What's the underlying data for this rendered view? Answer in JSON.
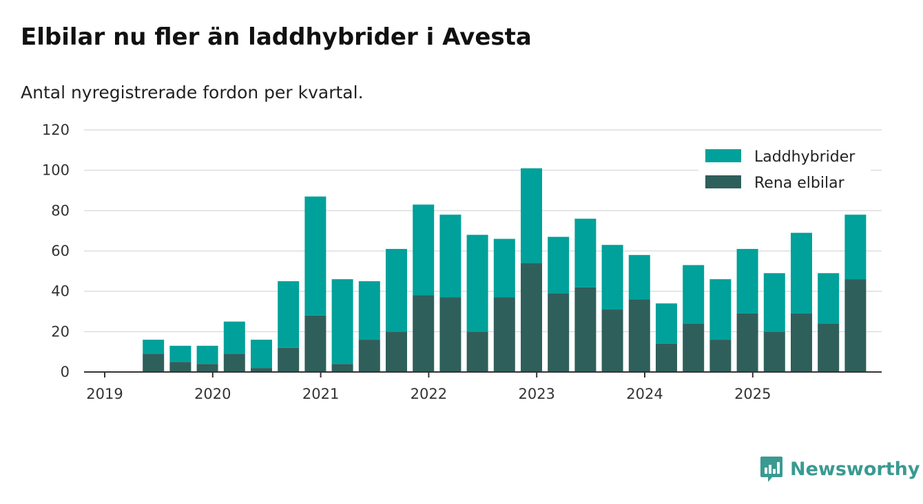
{
  "title": "Elbilar nu fler än laddhybrider i Avesta",
  "subtitle": "Antal nyregistrerade fordon per kvartal.",
  "brand": {
    "name": "Newsworthy",
    "icon": "newsworthy-logo-icon",
    "color": "#3a9a92"
  },
  "chart_data": {
    "type": "bar",
    "stacked": true,
    "categories": [
      "2019 Q1",
      "2019 Q2",
      "2019 Q3",
      "2019 Q4",
      "2020 Q1",
      "2020 Q2",
      "2020 Q3",
      "2020 Q4",
      "2021 Q1",
      "2021 Q2",
      "2021 Q3",
      "2021 Q4",
      "2022 Q1",
      "2022 Q2",
      "2022 Q3",
      "2022 Q4",
      "2023 Q1",
      "2023 Q2",
      "2023 Q3",
      "2023 Q4",
      "2024 Q1",
      "2024 Q2",
      "2024 Q3",
      "2024 Q4",
      "2025 Q1",
      "2025 Q2",
      "2025 Q3",
      "2025 Q4"
    ],
    "series": [
      {
        "name": "Rena elbilar",
        "color": "#2f5f5b",
        "values": [
          0,
          9,
          5,
          4,
          9,
          2,
          12,
          28,
          4,
          16,
          20,
          38,
          37,
          20,
          37,
          54,
          39,
          42,
          31,
          36,
          14,
          24,
          16,
          29,
          20,
          29,
          24,
          46
        ]
      },
      {
        "name": "Laddhybrider",
        "color": "#00a19a",
        "values": [
          0,
          7,
          8,
          9,
          16,
          14,
          33,
          59,
          42,
          29,
          41,
          45,
          41,
          48,
          29,
          47,
          28,
          34,
          32,
          22,
          20,
          29,
          30,
          32,
          29,
          40,
          25,
          32
        ]
      }
    ],
    "legend": [
      "Laddhybrider",
      "Rena elbilar"
    ],
    "legend_position": "top-right",
    "x_tick_labels": [
      "2019",
      "2020",
      "2021",
      "2022",
      "2023",
      "2024",
      "2025"
    ],
    "y_ticks": [
      0,
      20,
      40,
      60,
      80,
      100,
      120
    ],
    "ylim": [
      0,
      120
    ],
    "xlabel": "",
    "ylabel": "",
    "grid": true
  }
}
